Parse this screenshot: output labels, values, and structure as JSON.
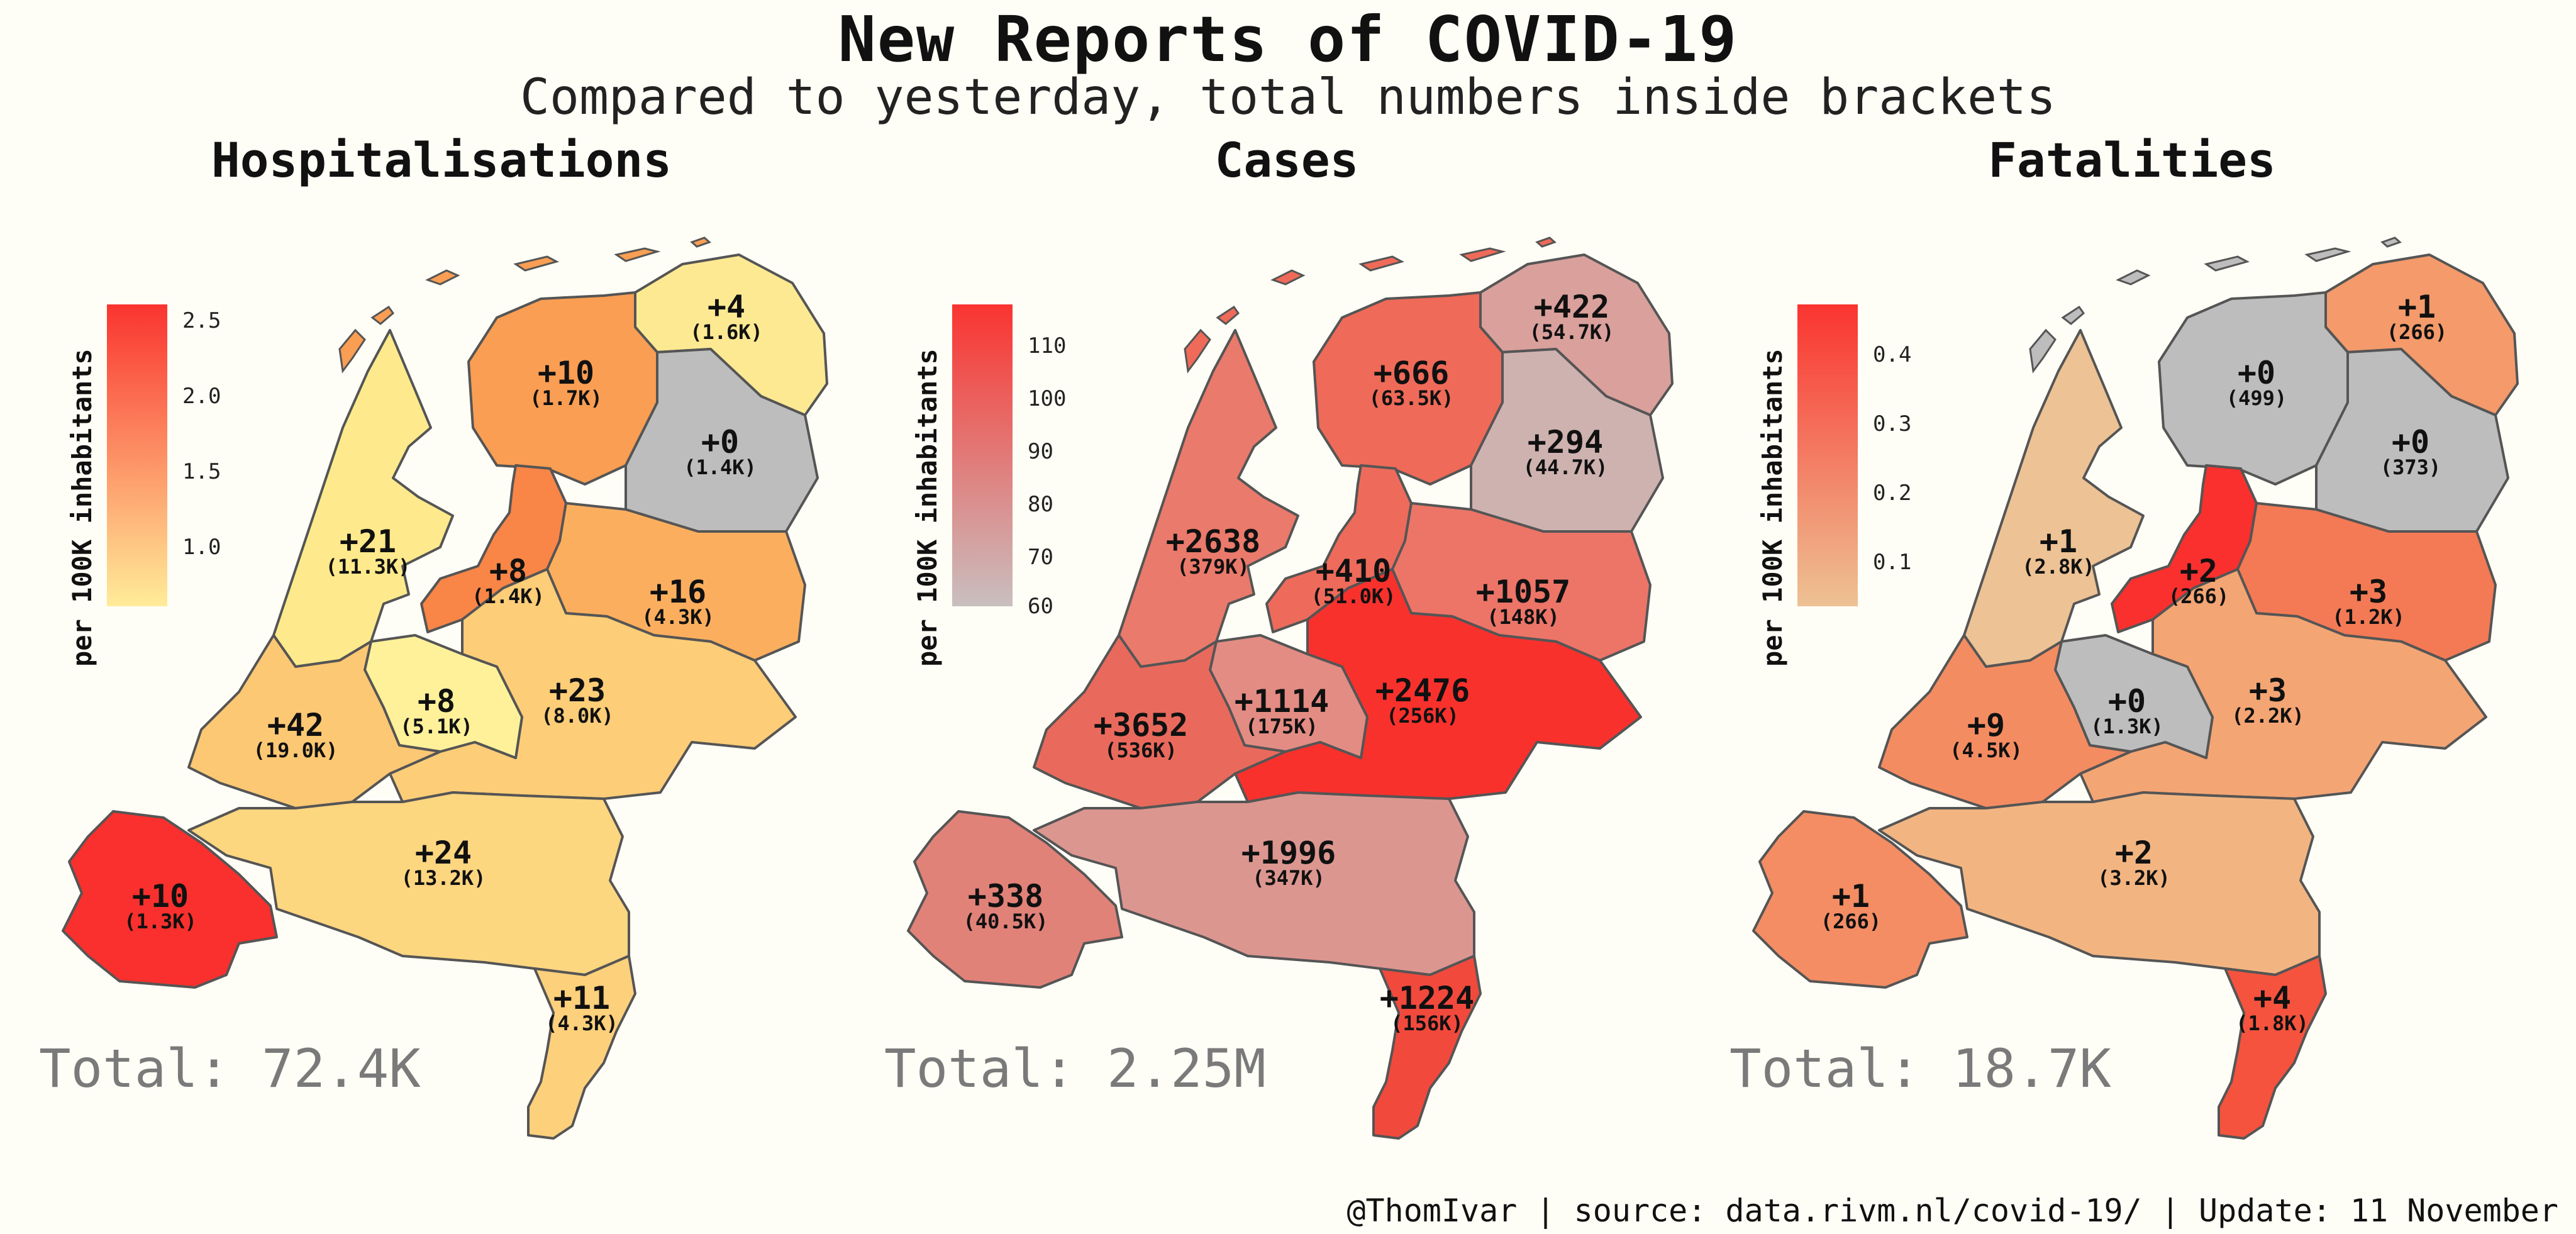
{
  "title": "New Reports of COVID-19",
  "subtitle": "Compared to yesterday, total numbers inside brackets",
  "footer": "@ThomIvar | source: data.rivm.nl/covid-19/ | Update: 11 November",
  "legend_title": "per 100K inhabitants",
  "panels": [
    {
      "title": "Hospitalisations",
      "total": "Total: 72.4K",
      "legend_ticks": [
        "2.5",
        "2.0",
        "1.5",
        "1.0"
      ],
      "legend_colors": [
        "#fa3430",
        "#ffec99"
      ],
      "regions": [
        {
          "name": "Groningen",
          "value": "+4",
          "total": "(1.6K)",
          "color": "#fde992"
        },
        {
          "name": "Friesland",
          "value": "+10",
          "total": "(1.7K)",
          "color": "#f99e53"
        },
        {
          "name": "Drenthe",
          "value": "+0",
          "total": "(1.4K)",
          "color": "#bdbdbd"
        },
        {
          "name": "Noord-Holland",
          "value": "+21",
          "total": "(11.3K)",
          "color": "#feea8c"
        },
        {
          "name": "Flevoland",
          "value": "+8",
          "total": "(1.4K)",
          "color": "#f98546"
        },
        {
          "name": "Overijssel",
          "value": "+16",
          "total": "(4.3K)",
          "color": "#fbaf5e"
        },
        {
          "name": "Gelderland",
          "value": "+23",
          "total": "(8.0K)",
          "color": "#fdcd78"
        },
        {
          "name": "Utrecht",
          "value": "+8",
          "total": "(5.1K)",
          "color": "#fef19a"
        },
        {
          "name": "Zuid-Holland",
          "value": "+42",
          "total": "(19.0K)",
          "color": "#fdc873"
        },
        {
          "name": "Noord-Brabant",
          "value": "+24",
          "total": "(13.2K)",
          "color": "#fdd680"
        },
        {
          "name": "Zeeland",
          "value": "+10",
          "total": "(1.3K)",
          "color": "#f9302d"
        },
        {
          "name": "Limburg",
          "value": "+11",
          "total": "(4.3K)",
          "color": "#fdd07c"
        }
      ]
    },
    {
      "title": "Cases",
      "total": "Total: 2.25M",
      "legend_ticks": [
        "110",
        "100",
        "90",
        "80",
        "70",
        "60"
      ],
      "legend_colors": [
        "#fa3430",
        "#c9bfbf"
      ],
      "regions": [
        {
          "name": "Groningen",
          "value": "+422",
          "total": "(54.7K)",
          "color": "#d9a09c"
        },
        {
          "name": "Friesland",
          "value": "+666",
          "total": "(63.5K)",
          "color": "#ef6a58"
        },
        {
          "name": "Drenthe",
          "value": "+294",
          "total": "(44.7K)",
          "color": "#ceb2b0"
        },
        {
          "name": "Noord-Holland",
          "value": "+2638",
          "total": "(379K)",
          "color": "#ea7a6b"
        },
        {
          "name": "Flevoland",
          "value": "+410",
          "total": "(51.0K)",
          "color": "#ee6b5b"
        },
        {
          "name": "Overijssel",
          "value": "+1057",
          "total": "(148K)",
          "color": "#ec7568"
        },
        {
          "name": "Gelderland",
          "value": "+2476",
          "total": "(256K)",
          "color": "#f8312d"
        },
        {
          "name": "Utrecht",
          "value": "+1114",
          "total": "(175K)",
          "color": "#e38c83"
        },
        {
          "name": "Zuid-Holland",
          "value": "+3652",
          "total": "(536K)",
          "color": "#e96a5c"
        },
        {
          "name": "Noord-Brabant",
          "value": "+1996",
          "total": "(347K)",
          "color": "#dc9690"
        },
        {
          "name": "Zeeland",
          "value": "+338",
          "total": "(40.5K)",
          "color": "#e18279"
        },
        {
          "name": "Limburg",
          "value": "+1224",
          "total": "(156K)",
          "color": "#f2493d"
        }
      ]
    },
    {
      "title": "Fatalities",
      "total": "Total: 18.7K",
      "legend_ticks": [
        "0.4",
        "0.3",
        "0.2",
        "0.1"
      ],
      "legend_colors": [
        "#fa3430",
        "#edc294"
      ],
      "regions": [
        {
          "name": "Groningen",
          "value": "+1",
          "total": "(266)",
          "color": "#f49a6b"
        },
        {
          "name": "Friesland",
          "value": "+0",
          "total": "(499)",
          "color": "#bdbdbd"
        },
        {
          "name": "Drenthe",
          "value": "+0",
          "total": "(373)",
          "color": "#bdbdbd"
        },
        {
          "name": "Noord-Holland",
          "value": "+1",
          "total": "(2.8K)",
          "color": "#edc294"
        },
        {
          "name": "Flevoland",
          "value": "+2",
          "total": "(266)",
          "color": "#f9302d"
        },
        {
          "name": "Overijssel",
          "value": "+3",
          "total": "(1.2K)",
          "color": "#f37a55"
        },
        {
          "name": "Gelderland",
          "value": "+3",
          "total": "(2.2K)",
          "color": "#f4a574"
        },
        {
          "name": "Utrecht",
          "value": "+0",
          "total": "(1.3K)",
          "color": "#bdbdbd"
        },
        {
          "name": "Zuid-Holland",
          "value": "+9",
          "total": "(4.5K)",
          "color": "#f48c62"
        },
        {
          "name": "Noord-Brabant",
          "value": "+2",
          "total": "(3.2K)",
          "color": "#f2b582"
        },
        {
          "name": "Zeeland",
          "value": "+1",
          "total": "(266)",
          "color": "#f48d64"
        },
        {
          "name": "Limburg",
          "value": "+4",
          "total": "(1.8K)",
          "color": "#f5533e"
        }
      ]
    }
  ]
}
